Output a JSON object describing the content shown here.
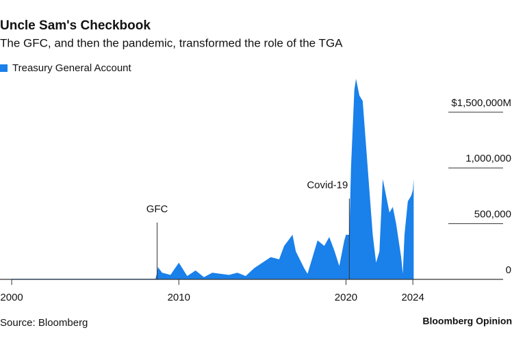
{
  "chart_data": {
    "type": "area",
    "title": "Uncle Sam's Checkbook",
    "subtitle": "The GFC, and then the pandemic, transformed the role of the TGA",
    "source": "Source: Bloomberg",
    "brand": "Bloomberg Opinion",
    "series": [
      {
        "name": "Treasury General Account",
        "color": "#1a80ea",
        "x": [
          2000,
          2004,
          2008.6,
          2008.7,
          2008.75,
          2009,
          2009.5,
          2010,
          2010.5,
          2011,
          2011.5,
          2012,
          2012.5,
          2013,
          2013.5,
          2014,
          2014.5,
          2015,
          2015.5,
          2016,
          2016.3,
          2016.8,
          2017,
          2017.5,
          2017.7,
          2018,
          2018.3,
          2018.7,
          2019,
          2019.3,
          2019.6,
          2019.9,
          2020.0,
          2020.2,
          2020.3,
          2020.5,
          2020.6,
          2020.8,
          2021.0,
          2021.2,
          2021.4,
          2021.6,
          2021.8,
          2022.0,
          2022.2,
          2022.4,
          2022.6,
          2022.8,
          2023.0,
          2023.3,
          2023.4,
          2023.5,
          2023.7,
          2023.9,
          2024.0,
          2024.05
        ],
        "values": [
          5000,
          5000,
          5000,
          60000,
          110000,
          60000,
          40000,
          150000,
          30000,
          80000,
          20000,
          60000,
          50000,
          40000,
          60000,
          30000,
          100000,
          150000,
          200000,
          180000,
          300000,
          400000,
          250000,
          100000,
          50000,
          200000,
          350000,
          300000,
          380000,
          260000,
          120000,
          350000,
          400000,
          400000,
          1000000,
          1700000,
          1800000,
          1650000,
          1600000,
          1200000,
          800000,
          400000,
          150000,
          250000,
          900000,
          750000,
          600000,
          650000,
          500000,
          200000,
          50000,
          400000,
          700000,
          750000,
          800000,
          900000
        ]
      }
    ],
    "xlim": [
      1999.3,
      2029.4
    ],
    "xticks": [
      2000,
      2010,
      2020,
      2024
    ],
    "ylim": [
      0,
      1800000
    ],
    "yticks": [
      0,
      {
        "value": 500000,
        "label": "500,000"
      },
      {
        "value": 1000000,
        "label": "1,000,000"
      },
      {
        "value": 1500000,
        "label": "$1,500,000M"
      }
    ],
    "annotations": [
      {
        "text": "GFC",
        "x": 2008.7
      },
      {
        "text": "Covid-19",
        "x": 2020.2
      }
    ]
  }
}
